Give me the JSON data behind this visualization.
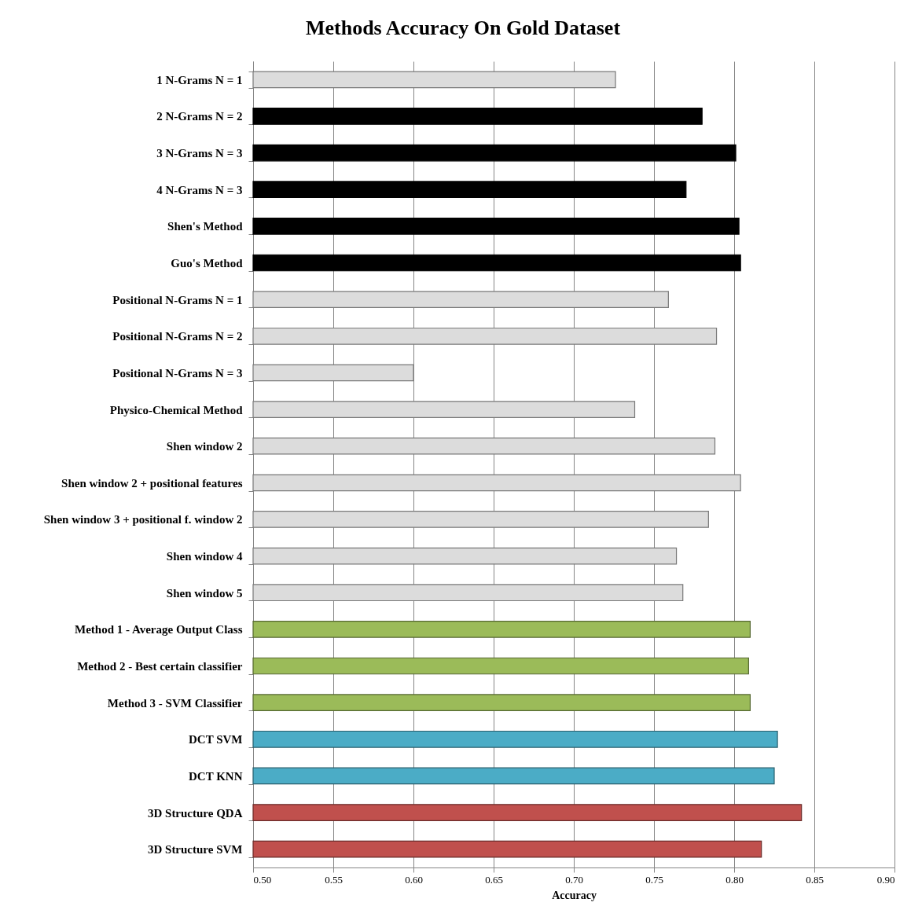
{
  "chart_data": {
    "type": "bar",
    "orientation": "horizontal",
    "title": "Methods Accuracy On Gold Dataset",
    "xlabel": "Accuracy",
    "categories": [
      "1 N-Grams N = 1",
      "2 N-Grams N = 2",
      "3 N-Grams N = 3",
      "4 N-Grams N = 3",
      "Shen's Method",
      "Guo's Method",
      "Positional N-Grams N = 1",
      "Positional N-Grams N = 2",
      "Positional N-Grams N = 3",
      "Physico-Chemical Method",
      "Shen window 2",
      "Shen window 2 + positional features",
      "Shen window 3 + positional f. window 2",
      "Shen window 4",
      "Shen window 5",
      "Method 1 - Average Output Class",
      "Method 2 - Best certain classifier",
      "Method 3 - SVM Classifier",
      "DCT SVM",
      "DCT KNN",
      "3D Structure QDA",
      "3D Structure SVM"
    ],
    "values": [
      0.726,
      0.78,
      0.801,
      0.77,
      0.803,
      0.804,
      0.759,
      0.789,
      0.6,
      0.738,
      0.788,
      0.804,
      0.784,
      0.764,
      0.768,
      0.81,
      0.809,
      0.81,
      0.827,
      0.825,
      0.842,
      0.817
    ],
    "colors": [
      "#dcdcdc",
      "#000000",
      "#000000",
      "#000000",
      "#000000",
      "#000000",
      "#dcdcdc",
      "#dcdcdc",
      "#dcdcdc",
      "#dcdcdc",
      "#dcdcdc",
      "#dcdcdc",
      "#dcdcdc",
      "#dcdcdc",
      "#dcdcdc",
      "#9bbb59",
      "#9bbb59",
      "#9bbb59",
      "#4bacc6",
      "#4bacc6",
      "#c0504d",
      "#c0504d"
    ],
    "xlim": [
      0.5,
      0.9
    ],
    "xticks": [
      {
        "value": 0.5,
        "label": "0.50"
      },
      {
        "value": 0.55,
        "label": "0.55"
      },
      {
        "value": 0.6,
        "label": "0.60"
      },
      {
        "value": 0.65,
        "label": "0.65"
      },
      {
        "value": 0.7,
        "label": "0.70"
      },
      {
        "value": 0.75,
        "label": "0.75"
      },
      {
        "value": 0.8,
        "label": "0.80"
      },
      {
        "value": 0.85,
        "label": "0.85"
      },
      {
        "value": 0.9,
        "label": "0.90"
      }
    ],
    "grid": "x"
  }
}
